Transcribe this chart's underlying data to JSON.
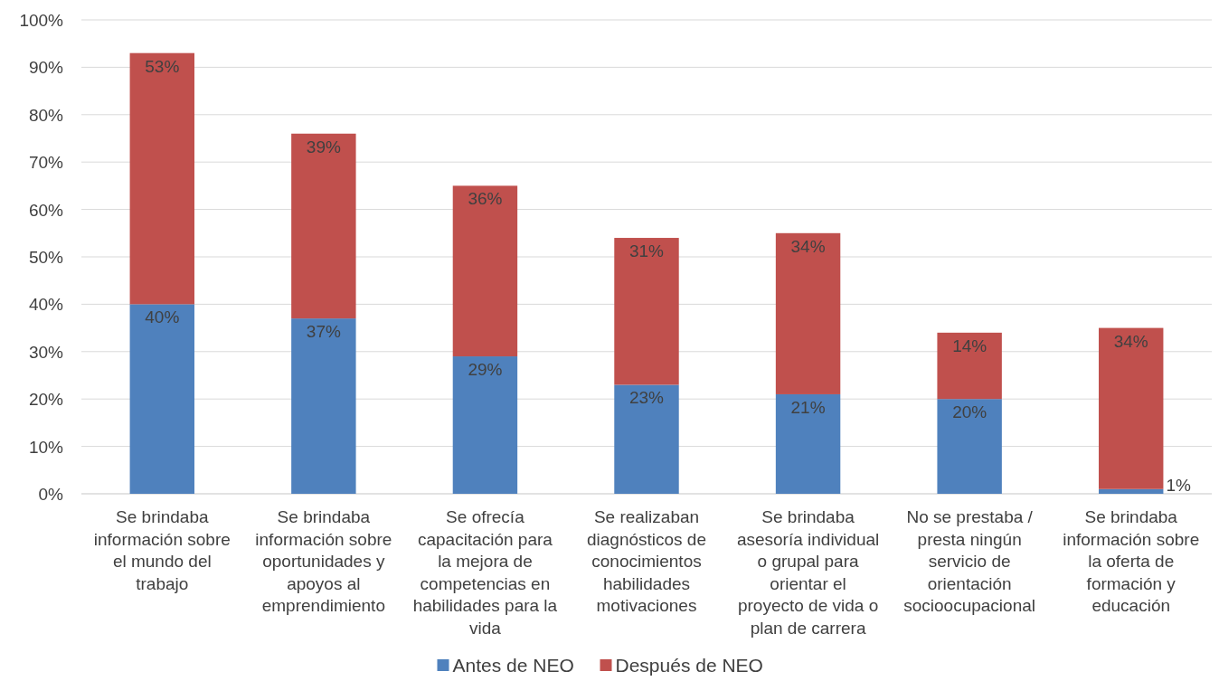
{
  "chart_data": {
    "type": "bar",
    "stacked": true,
    "categories": [
      "Se brindaba información sobre el mundo del trabajo",
      "Se brindaba información sobre oportunidades y apoyos al emprendimiento",
      "Se ofrecía capacitación para la mejora de competencias en habilidades para la vida",
      "Se realizaban diagnósticos de conocimientos habilidades motivaciones",
      "Se brindaba asesoría individual o grupal para orientar el proyecto de vida o plan de carrera",
      "No se prestaba / presta ningún servicio de orientación socioocupacional",
      "Se brindaba información sobre la oferta de formación y educación"
    ],
    "series": [
      {
        "name": "Antes de NEO",
        "color": "#4f81bd",
        "values": [
          40,
          37,
          29,
          23,
          21,
          20,
          1
        ],
        "value_labels": [
          "40%",
          "37%",
          "29%",
          "23%",
          "21%",
          "20%",
          "1%"
        ]
      },
      {
        "name": "Después de NEO",
        "color": "#c0504d",
        "values": [
          53,
          39,
          36,
          31,
          34,
          14,
          34
        ],
        "value_labels": [
          "53%",
          "39%",
          "36%",
          "31%",
          "34%",
          "14%",
          "34%"
        ]
      }
    ],
    "ylim": [
      0,
      100
    ],
    "yticks": [
      {
        "value": 0,
        "label": "0%"
      },
      {
        "value": 10,
        "label": "10%"
      },
      {
        "value": 20,
        "label": "20%"
      },
      {
        "value": 30,
        "label": "30%"
      },
      {
        "value": 40,
        "label": "40%"
      },
      {
        "value": 50,
        "label": "50%"
      },
      {
        "value": 60,
        "label": "60%"
      },
      {
        "value": 70,
        "label": "70%"
      },
      {
        "value": 80,
        "label": "80%"
      },
      {
        "value": 90,
        "label": "90%"
      },
      {
        "value": 100,
        "label": "100%"
      }
    ],
    "grid": "y",
    "legend": "bottom"
  }
}
